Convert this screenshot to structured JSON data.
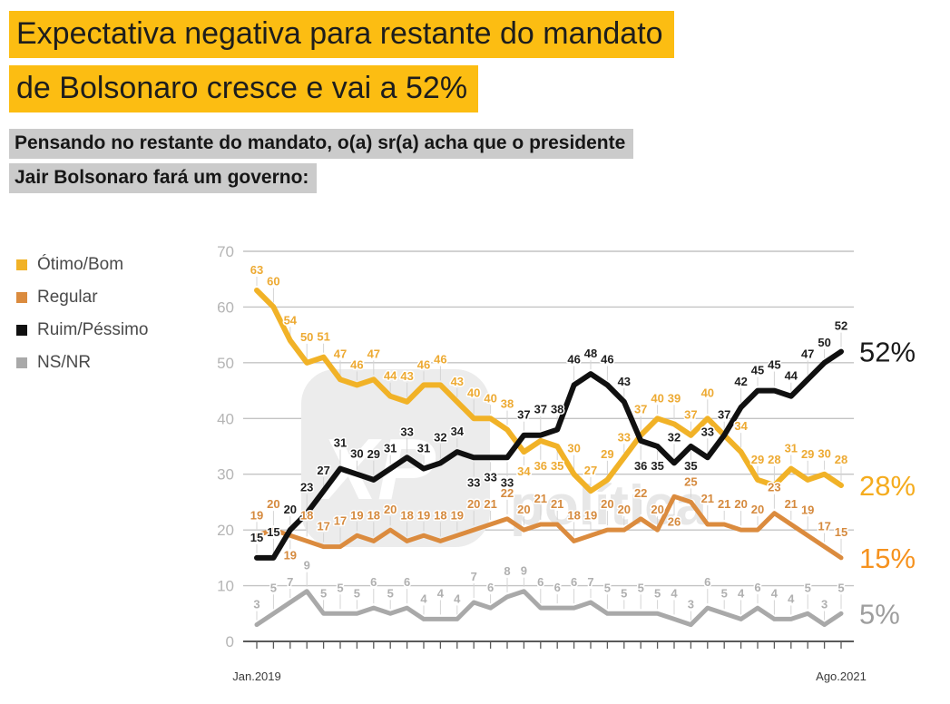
{
  "title": {
    "line1": "Expectativa negativa para restante do mandato",
    "line2": "de Bolsonaro cresce e vai a 52%",
    "highlight_color": "#FCBD12"
  },
  "subtitle": {
    "line1": "Pensando no restante do mandato, o(a) sr(a) acha que o presidente",
    "line2": "Jair Bolsonaro fará um governo:",
    "highlight_color": "#CBCBCB"
  },
  "chart_data": {
    "type": "line",
    "x_axis": {
      "first_tick_label": "Jan.2019",
      "last_tick_label": "Ago.2021",
      "n_points": 36
    },
    "y_axis": {
      "min": 0,
      "max": 70,
      "ticks": [
        0,
        10,
        20,
        30,
        40,
        50,
        60,
        70
      ]
    },
    "grid": true,
    "legend_position": "top-left",
    "series": [
      {
        "name": "Ótimo/Bom",
        "color": "#F1B227",
        "label_color": "#EDAA33",
        "line_width": 6,
        "values": [
          63,
          60,
          54,
          50,
          51,
          47,
          46,
          47,
          44,
          43,
          46,
          46,
          43,
          40,
          40,
          38,
          34,
          36,
          35,
          30,
          27,
          29,
          33,
          37,
          40,
          39,
          37,
          40,
          37,
          34,
          29,
          28,
          31,
          29,
          30,
          28
        ],
        "end_label": "28%",
        "end_label_color": "#F5AC1E",
        "hidden_label_indices": [
          28
        ],
        "below_label_indices": [
          16,
          17,
          18
        ]
      },
      {
        "name": "Regular",
        "color": "#DB8B3E",
        "label_color": "#D58A3E",
        "line_width": 5,
        "values": [
          19,
          20,
          19,
          18,
          17,
          17,
          19,
          18,
          20,
          18,
          19,
          18,
          19,
          20,
          21,
          22,
          20,
          21,
          21,
          18,
          19,
          20,
          20,
          22,
          20,
          26,
          25,
          21,
          21,
          20,
          20,
          23,
          21,
          19,
          17,
          15
        ],
        "end_label": "15%",
        "end_label_color": "#F6921E",
        "hidden_label_indices": [],
        "below_label_indices": [
          2,
          25
        ]
      },
      {
        "name": "Ruim/Péssimo",
        "color": "#101010",
        "label_color": "#1f1f1f",
        "line_width": 6,
        "values": [
          15,
          15,
          20,
          23,
          27,
          31,
          30,
          29,
          31,
          33,
          31,
          32,
          34,
          33,
          33,
          33,
          37,
          37,
          38,
          46,
          48,
          46,
          43,
          36,
          35,
          32,
          35,
          33,
          37,
          42,
          45,
          45,
          44,
          47,
          50,
          52
        ],
        "end_label": "52%",
        "end_label_color": "#1a1a1a",
        "hidden_label_indices": [],
        "below_label_indices": [
          13,
          14,
          15,
          23,
          24,
          26
        ]
      },
      {
        "name": "NS/NR",
        "color": "#A9A9A9",
        "label_color": "#B0B0B0",
        "line_width": 5,
        "values": [
          3,
          5,
          7,
          9,
          5,
          5,
          5,
          6,
          5,
          6,
          4,
          4,
          4,
          7,
          6,
          8,
          9,
          6,
          6,
          6,
          7,
          5,
          5,
          5,
          5,
          4,
          3,
          6,
          5,
          4,
          6,
          4,
          4,
          5,
          3,
          5
        ],
        "end_label": "5%",
        "end_label_color": "#9E9E9E",
        "hidden_label_indices": [],
        "below_label_indices": []
      }
    ],
    "watermark": {
      "box_text": "XP",
      "side_text": "política"
    }
  }
}
